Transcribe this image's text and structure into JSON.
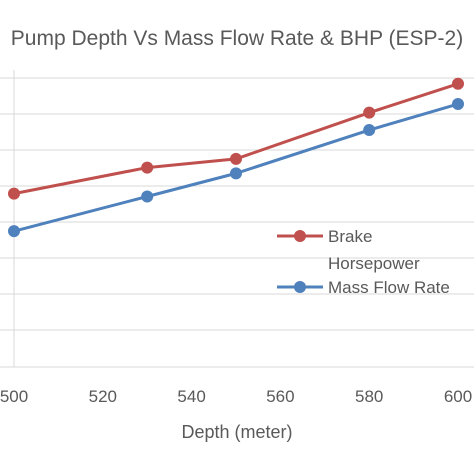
{
  "chart_data": {
    "type": "line",
    "title": "Pump Depth Vs Mass Flow Rate & BHP (ESP-2)",
    "xlabel": "Depth (meter)",
    "ylabel": "",
    "x": [
      500,
      530,
      550,
      580,
      600
    ],
    "xlim": [
      500,
      600
    ],
    "xticks": [
      "500",
      "520",
      "540",
      "560",
      "580",
      "600"
    ],
    "ylim": [
      0,
      1
    ],
    "grid": true,
    "legend_position": "right",
    "series": [
      {
        "name": "Brake Horsepower",
        "name_lines": [
          "Brake",
          "Horsepower"
        ],
        "color": "#c0504d",
        "values": [
          0.6,
          0.69,
          0.72,
          0.88,
          0.98
        ]
      },
      {
        "name": "Mass Flow Rate",
        "name_lines": [
          "Mass Flow Rate"
        ],
        "color": "#4f81bd",
        "values": [
          0.47,
          0.59,
          0.67,
          0.82,
          0.91
        ]
      }
    ]
  }
}
